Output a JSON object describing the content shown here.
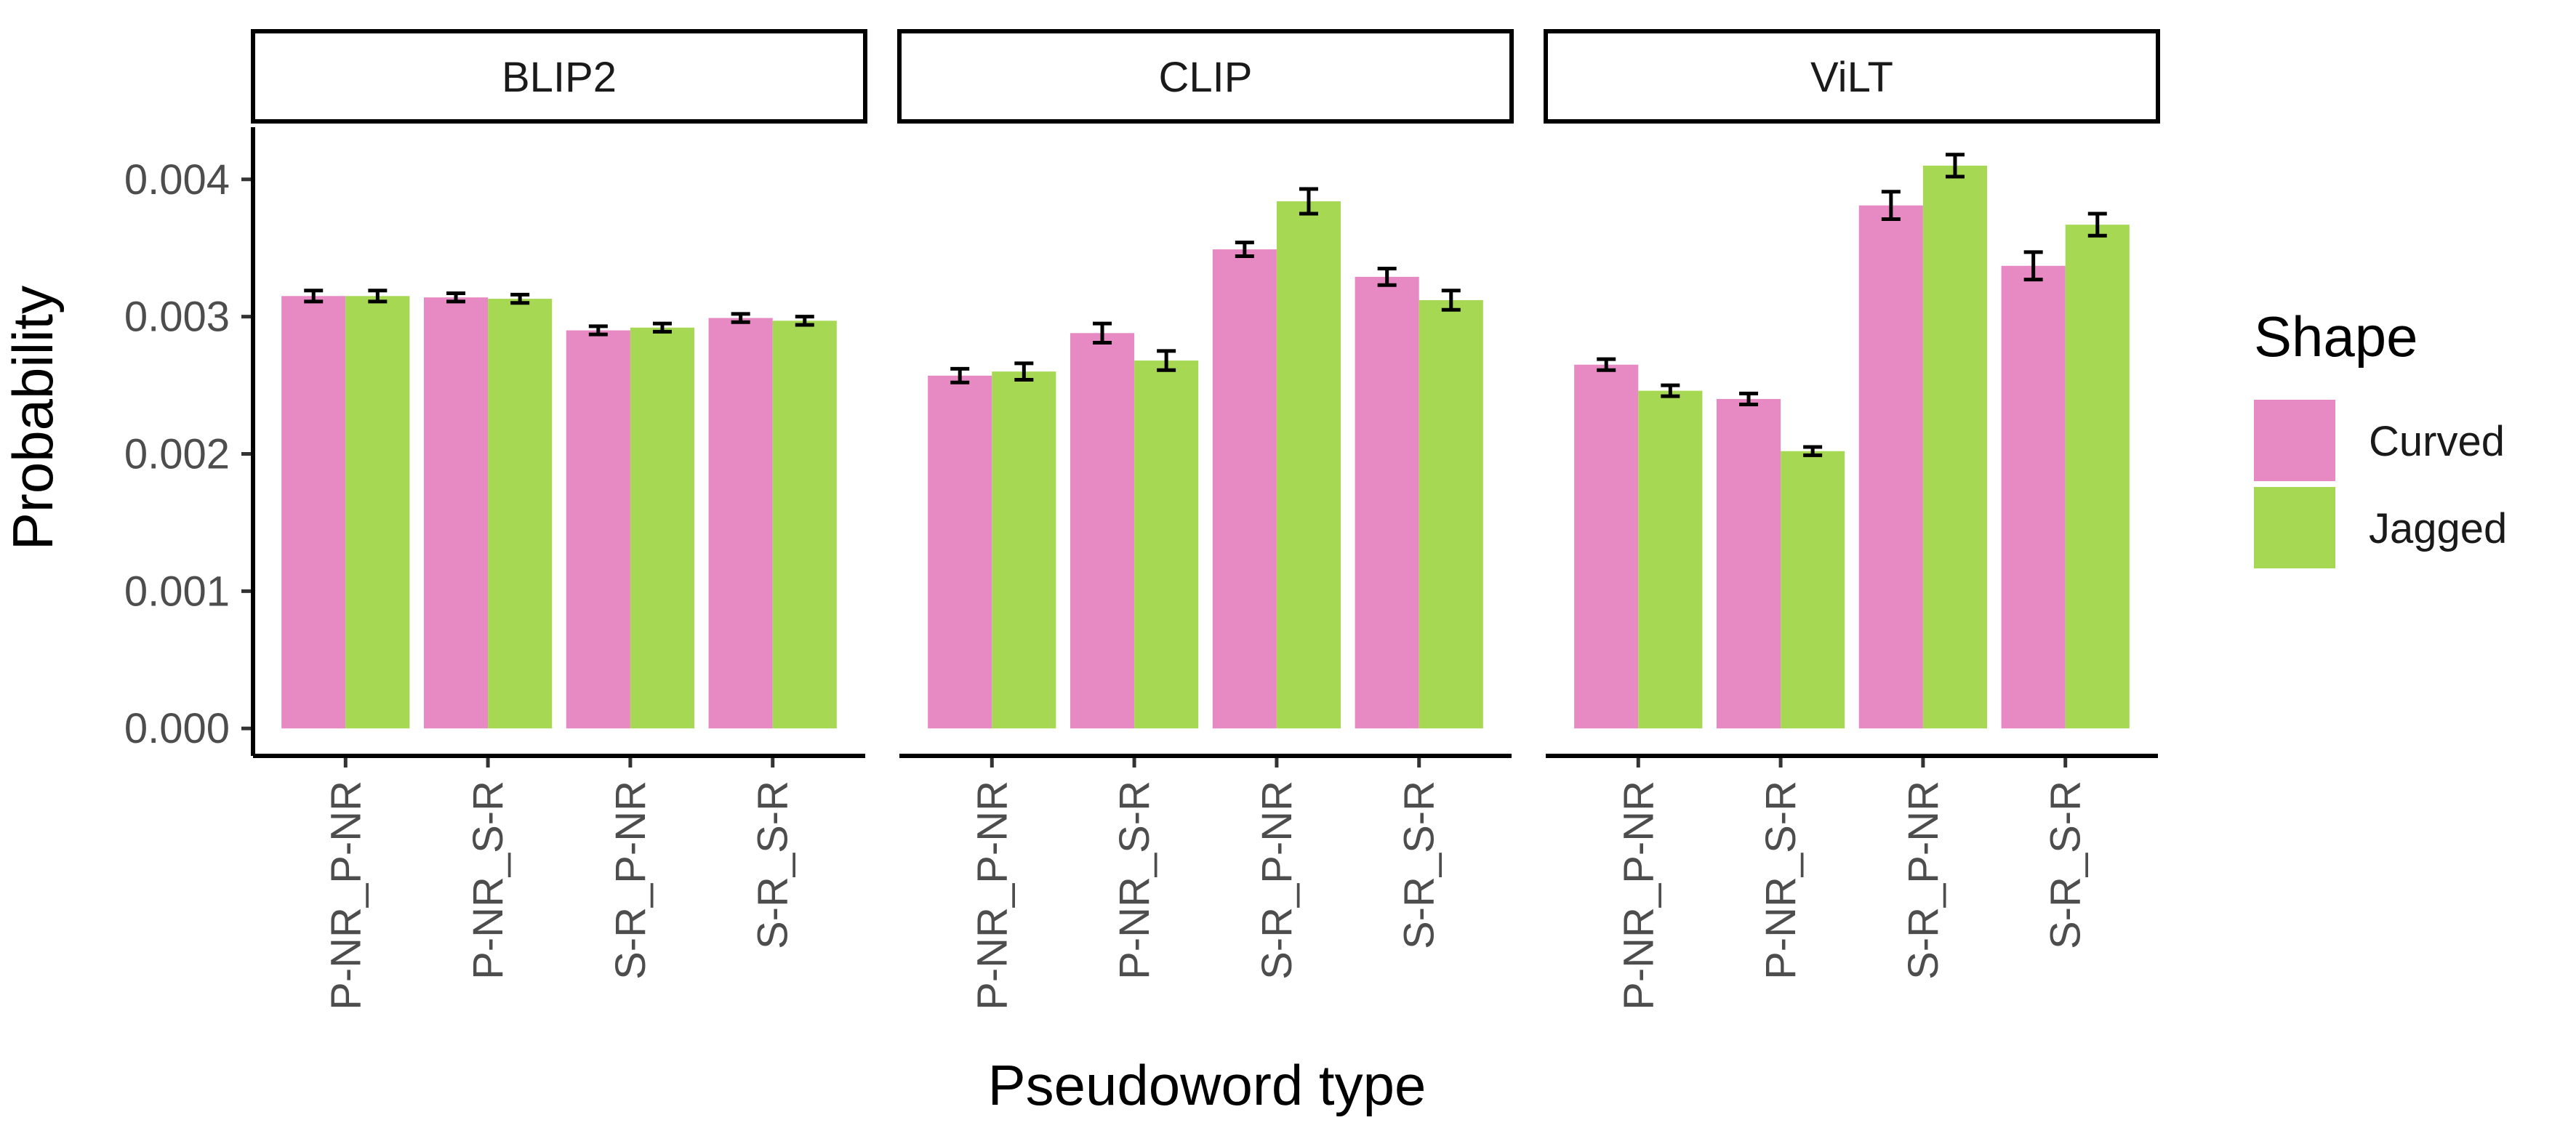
{
  "chart_data": {
    "type": "bar",
    "layout": "faceted",
    "ylabel": "Probability",
    "xlabel": "Pseudoword type",
    "ylim": [
      -0.0002,
      0.00438
    ],
    "yticks": [
      "0.000",
      "0.001",
      "0.002",
      "0.003",
      "0.004"
    ],
    "ytick_values": [
      0,
      0.001,
      0.002,
      0.003,
      0.004
    ],
    "categories": [
      "P-NR_P-NR",
      "P-NR_S-R",
      "S-R_P-NR",
      "S-R_S-R"
    ],
    "legend": {
      "title": "Shape",
      "position": "right",
      "entries": [
        {
          "name": "Curved",
          "color": "#E78AC3"
        },
        {
          "name": "Jagged",
          "color": "#A6D854"
        }
      ]
    },
    "facets": [
      {
        "name": "BLIP2",
        "series": [
          {
            "name": "Curved",
            "values": [
              0.00315,
              0.00314,
              0.0029,
              0.00299
            ],
            "errors": [
              4e-05,
              3e-05,
              3e-05,
              3e-05
            ]
          },
          {
            "name": "Jagged",
            "values": [
              0.00315,
              0.00313,
              0.00292,
              0.00297
            ],
            "errors": [
              4e-05,
              3e-05,
              3e-05,
              3e-05
            ]
          }
        ]
      },
      {
        "name": "CLIP",
        "series": [
          {
            "name": "Curved",
            "values": [
              0.00257,
              0.00288,
              0.00349,
              0.00329
            ],
            "errors": [
              5e-05,
              7e-05,
              5e-05,
              6e-05
            ]
          },
          {
            "name": "Jagged",
            "values": [
              0.0026,
              0.00268,
              0.00384,
              0.00312
            ],
            "errors": [
              6e-05,
              7e-05,
              9e-05,
              7e-05
            ]
          }
        ]
      },
      {
        "name": "ViLT",
        "series": [
          {
            "name": "Curved",
            "values": [
              0.00265,
              0.0024,
              0.00381,
              0.00337
            ],
            "errors": [
              4e-05,
              4e-05,
              0.0001,
              0.0001
            ]
          },
          {
            "name": "Jagged",
            "values": [
              0.00246,
              0.00202,
              0.0041,
              0.00367
            ],
            "errors": [
              4e-05,
              3e-05,
              8e-05,
              8e-05
            ]
          }
        ]
      }
    ]
  }
}
